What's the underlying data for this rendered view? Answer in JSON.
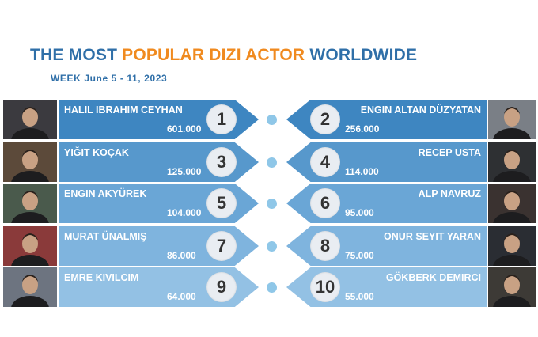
{
  "header": {
    "title_part1": "THE MOST",
    "title_part2": "POPULAR DIZI ACTOR",
    "title_part3": "WORLDWIDE",
    "week": "WEEK June 5 - 11, 2023"
  },
  "colors": {
    "title_blue": "#2f6fa8",
    "title_orange": "#f08a1f",
    "dot": "#8fc7e8",
    "banner_shades": [
      "#3e86c1",
      "#5798cc",
      "#6aa6d6",
      "#7fb4de",
      "#93c1e4"
    ]
  },
  "rows": [
    {
      "left": {
        "name": "HALIL IBRAHIM CEYHAN",
        "rank": "1",
        "score": "601.000",
        "photo": "actor-portrait"
      },
      "right": {
        "name": "ENGIN ALTAN DÜZYATAN",
        "rank": "2",
        "score": "256.000",
        "photo": "actor-portrait"
      }
    },
    {
      "left": {
        "name": "YIĞIT KOÇAK",
        "rank": "3",
        "score": "125.000",
        "photo": "actor-portrait"
      },
      "right": {
        "name": "RECEP USTA",
        "rank": "4",
        "score": "114.000",
        "photo": "actor-portrait"
      }
    },
    {
      "left": {
        "name": "ENGIN AKYÜREK",
        "rank": "5",
        "score": "104.000",
        "photo": "actor-portrait"
      },
      "right": {
        "name": "ALP NAVRUZ",
        "rank": "6",
        "score": "95.000",
        "photo": "actor-portrait"
      }
    },
    {
      "left": {
        "name": "MURAT ÜNALMIŞ",
        "rank": "7",
        "score": "86.000",
        "photo": "actor-portrait"
      },
      "right": {
        "name": "ONUR SEYIT YARAN",
        "rank": "8",
        "score": "75.000",
        "photo": "actor-portrait"
      }
    },
    {
      "left": {
        "name": "EMRE KIVILCIM",
        "rank": "9",
        "score": "64.000",
        "photo": "actor-portrait"
      },
      "right": {
        "name": "GÖKBERK DEMIRCI",
        "rank": "10",
        "score": "55.000",
        "photo": "actor-portrait"
      }
    }
  ]
}
